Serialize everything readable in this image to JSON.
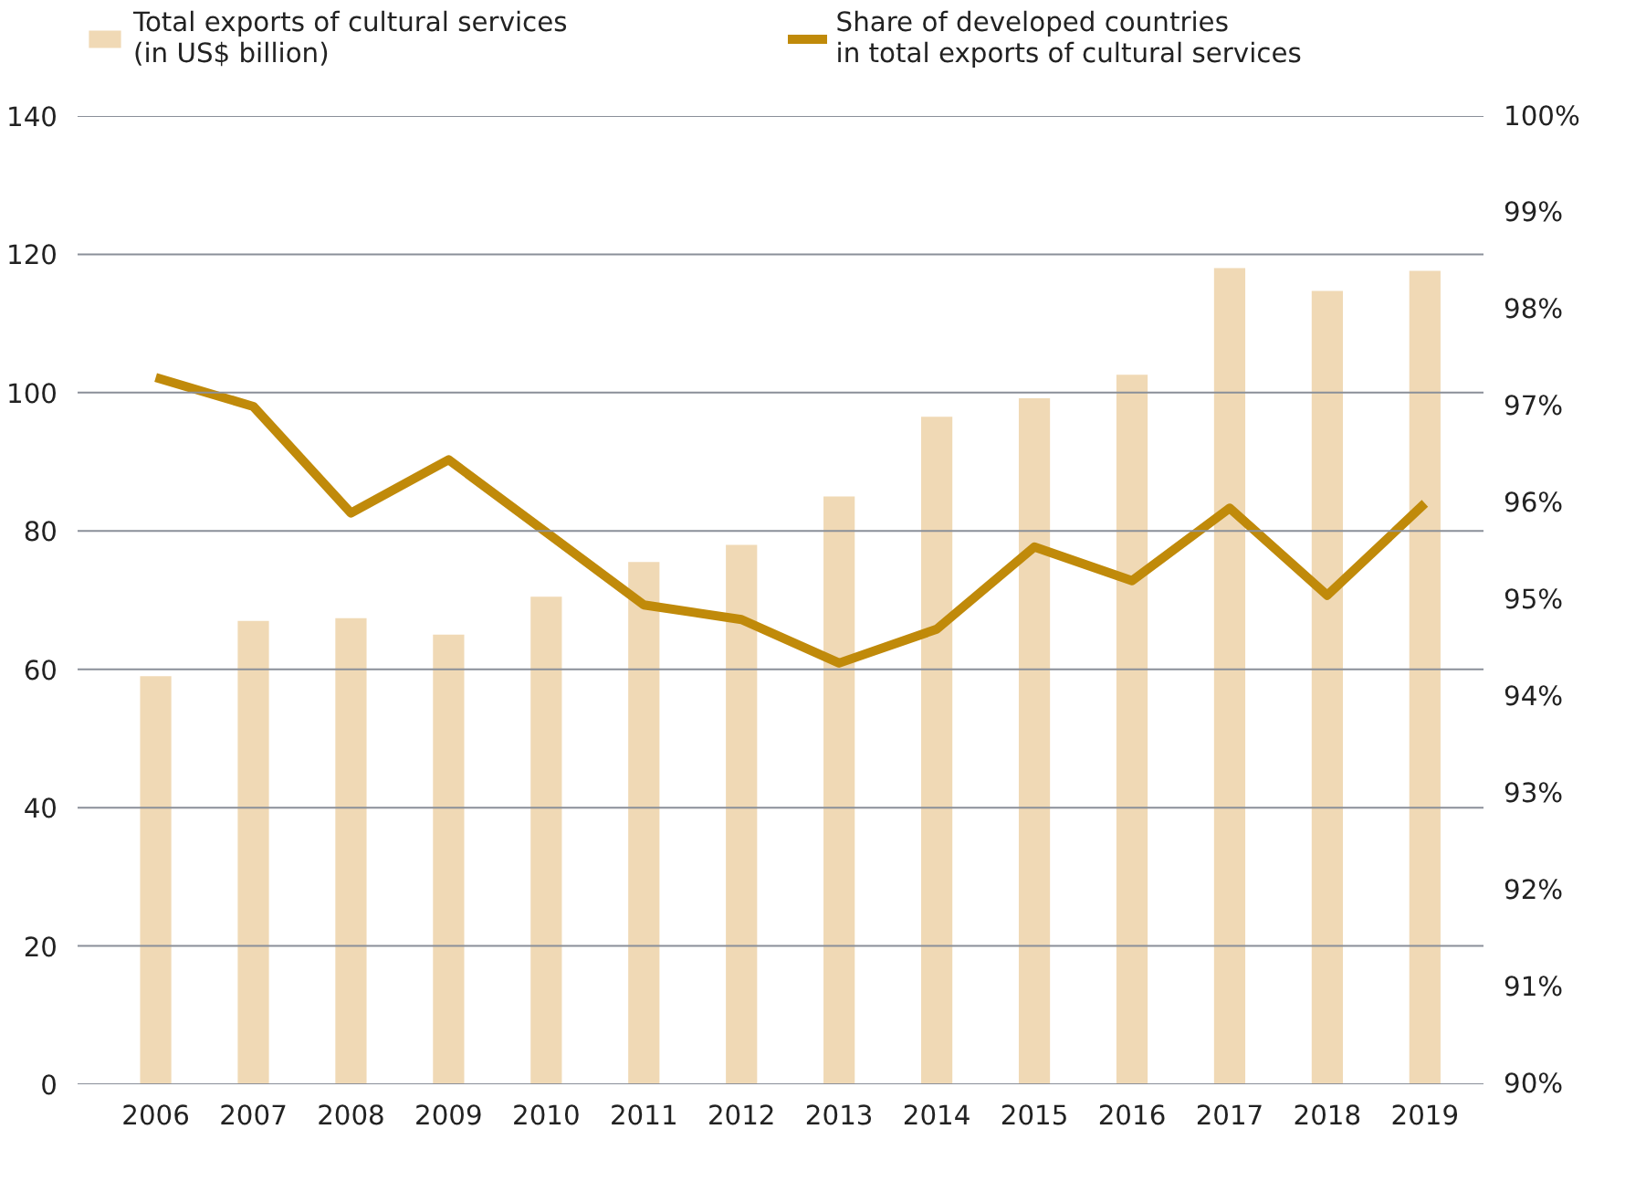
{
  "chart_data": {
    "type": "bar",
    "categories": [
      "2006",
      "2007",
      "2008",
      "2009",
      "2010",
      "2011",
      "2012",
      "2013",
      "2014",
      "2015",
      "2016",
      "2017",
      "2018",
      "2019"
    ],
    "series": [
      {
        "name": "Total exports of cultural services\n(in US$ billion)",
        "color": "#f0d9b5",
        "values": [
          59,
          67,
          67.4,
          65,
          70.5,
          75.5,
          78,
          85,
          96.5,
          99.2,
          102.6,
          118,
          114.7,
          117.6
        ]
      },
      {
        "name": "Share of developed countries\nin total exports of cultural services",
        "type": "line",
        "axis": "y2",
        "color": "#c08a0a",
        "values": [
          97.3,
          97.0,
          95.9,
          96.45,
          95.7,
          94.95,
          94.8,
          94.35,
          94.7,
          95.55,
          95.2,
          95.95,
          95.05,
          96.0
        ]
      }
    ],
    "ylim": [
      0,
      140
    ],
    "yticks": [
      0,
      20,
      40,
      60,
      80,
      100,
      120,
      140
    ],
    "y2lim": [
      90,
      100
    ],
    "y2ticks": [
      {
        "value": 90,
        "label": "90%"
      },
      {
        "value": 91,
        "label": "91%"
      },
      {
        "value": 92,
        "label": "92%"
      },
      {
        "value": 93,
        "label": "93%"
      },
      {
        "value": 94,
        "label": "94%"
      },
      {
        "value": 95,
        "label": "95%"
      },
      {
        "value": 96,
        "label": "96%"
      },
      {
        "value": 97,
        "label": "97%"
      },
      {
        "value": 98,
        "label": "98%"
      },
      {
        "value": 99,
        "label": "99%"
      },
      {
        "value": 100,
        "label": "100%"
      }
    ],
    "grid": "y",
    "legend": "top",
    "line_style": "solid",
    "marker": "none"
  }
}
